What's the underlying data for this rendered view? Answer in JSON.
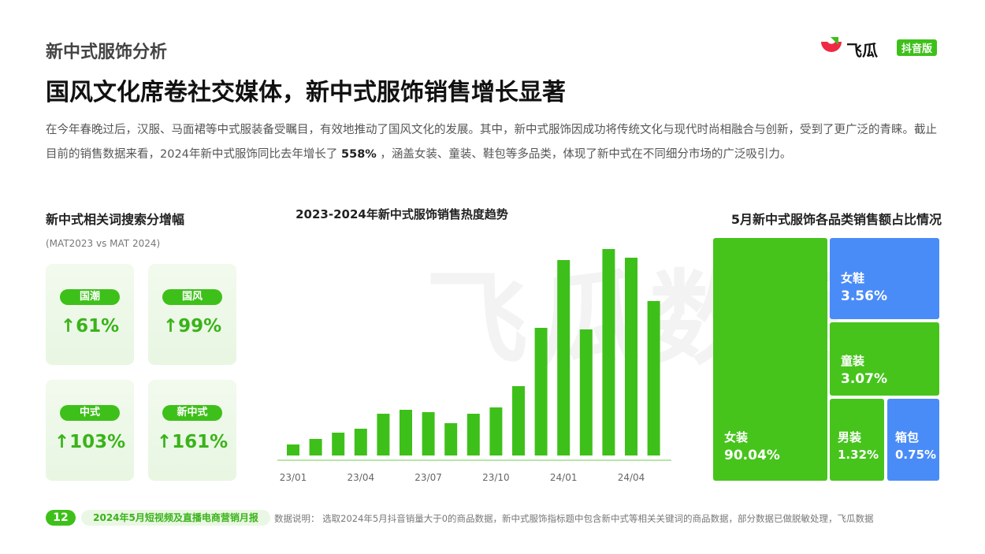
{
  "header": {
    "section": "新中式服饰分析",
    "title": "国风文化席卷社交媒体，新中式服饰销售增长显著",
    "logo": "飞瓜",
    "logo_badge": "抖音版"
  },
  "intro": {
    "before": "在今年春晚过后，汉服、马面裙等中式服装备受瞩目，有效地推动了国风文化的发展。其中，新中式服饰因成功将传统文化与现代时尚相融合与创新，受到了更广泛的青睐。截止目前的销售数据来看，2024年新中式服饰同比去年增长了",
    "highlight": "558%",
    "after": "，涵盖女装、童装、鞋包等多品类，体现了新中式在不同细分市场的广泛吸引力。"
  },
  "watermark": "飞瓜数据",
  "search": {
    "title": "新中式相关词搜索分增幅",
    "subtitle": "(MAT2023 vs MAT 2024)",
    "cards": [
      {
        "label": "国潮",
        "value": "↑61%"
      },
      {
        "label": "国风",
        "value": "↑99%"
      },
      {
        "label": "中式",
        "value": "↑103%"
      },
      {
        "label": "新中式",
        "value": "↑161%"
      }
    ]
  },
  "chart_data": [
    {
      "type": "bar",
      "title": "2023-2024年新中式服饰销售热度趋势",
      "categories": [
        "23/01",
        null,
        null,
        "23/04",
        null,
        null,
        "23/07",
        null,
        null,
        "23/10",
        null,
        null,
        "24/01",
        null,
        null,
        "24/04",
        null
      ],
      "values": [
        14,
        21,
        29,
        34,
        53,
        58,
        55,
        41,
        53,
        61,
        88,
        162,
        248,
        160,
        262,
        251,
        196
      ],
      "color": "#3ec01a"
    },
    {
      "type": "treemap",
      "title": "5月新中式服饰各品类销售额占比情况",
      "categories": [
        "女装",
        "女鞋",
        "童装",
        "男装",
        "箱包"
      ],
      "values": [
        90.04,
        3.56,
        3.07,
        1.32,
        0.75
      ],
      "value_labels": [
        "90.04%",
        "3.56%",
        "3.07%",
        "1.32%",
        "0.75%"
      ],
      "colors": [
        "#46c41c",
        "#4a8cf7",
        "#46c41c",
        "#46c41c",
        "#4a8cf7"
      ]
    }
  ],
  "footer": {
    "page": "12",
    "report": "2024年5月短视频及直播电商营销月报",
    "note": "数据说明：   选取2024年5月抖音销量大于0的商品数据，新中式服饰指标题中包含新中式等相关关键词的商品数据，部分数据已做脱敏处理，飞瓜数据"
  }
}
